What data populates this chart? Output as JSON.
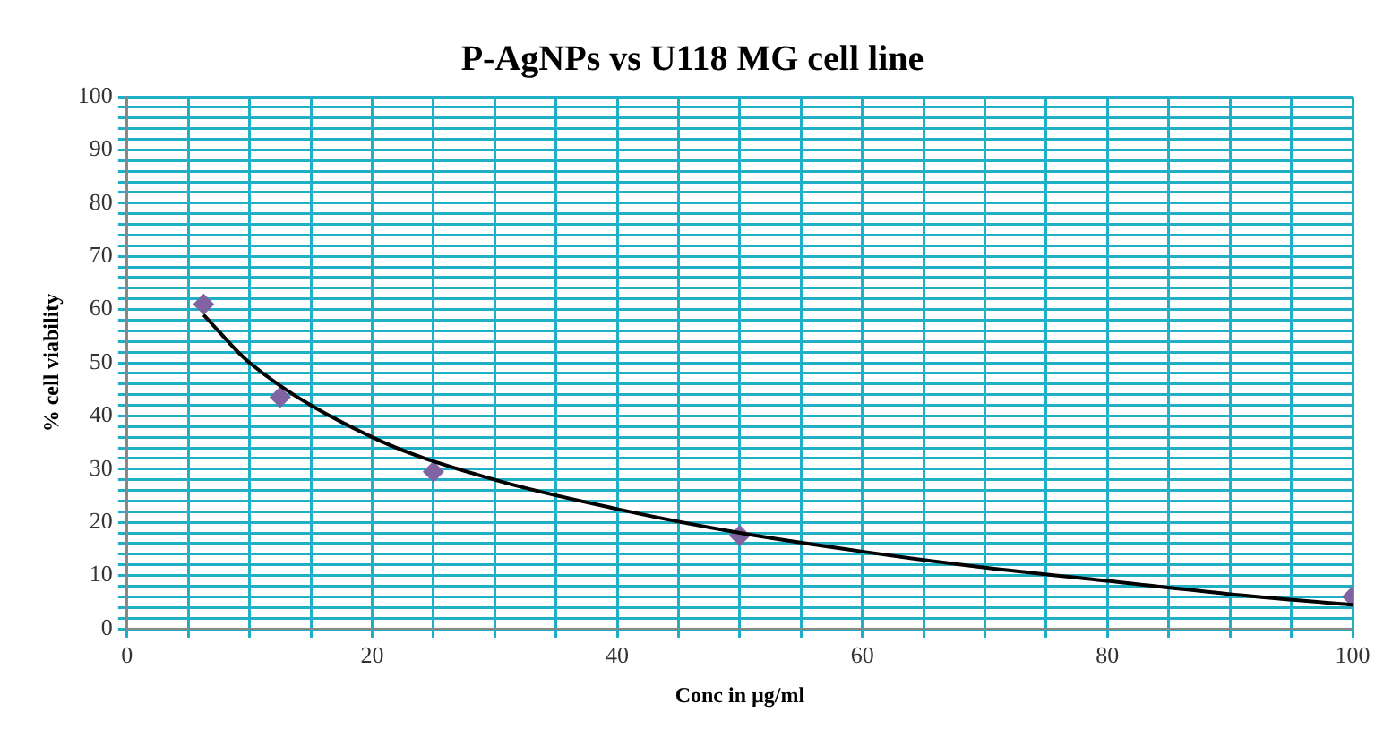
{
  "chart_data": {
    "type": "scatter",
    "title": "P-AgNPs vs U118 MG cell line",
    "xlabel": "Conc in µg/ml",
    "ylabel": "% cell viability",
    "xlim": [
      0,
      100
    ],
    "ylim": [
      0,
      100
    ],
    "xticks": [
      0,
      {
        "value": 5,
        "label": null
      },
      {
        "value": 10,
        "label": null
      },
      {
        "value": 15,
        "label": null
      },
      20,
      {
        "value": 25,
        "label": null
      },
      {
        "value": 30,
        "label": null
      },
      {
        "value": 35,
        "label": null
      },
      40,
      {
        "value": 45,
        "label": null
      },
      {
        "value": 50,
        "label": null
      },
      {
        "value": 55,
        "label": null
      },
      60,
      {
        "value": 65,
        "label": null
      },
      {
        "value": 70,
        "label": null
      },
      {
        "value": 75,
        "label": null
      },
      80,
      {
        "value": 85,
        "label": null
      },
      {
        "value": 90,
        "label": null
      },
      {
        "value": 95,
        "label": null
      },
      100
    ],
    "yticks": [
      0,
      {
        "value": 2,
        "label": null
      },
      {
        "value": 4,
        "label": null
      },
      {
        "value": 6,
        "label": null
      },
      {
        "value": 8,
        "label": null
      },
      10,
      {
        "value": 12,
        "label": null
      },
      {
        "value": 14,
        "label": null
      },
      {
        "value": 16,
        "label": null
      },
      {
        "value": 18,
        "label": null
      },
      20,
      {
        "value": 22,
        "label": null
      },
      {
        "value": 24,
        "label": null
      },
      {
        "value": 26,
        "label": null
      },
      {
        "value": 28,
        "label": null
      },
      30,
      {
        "value": 32,
        "label": null
      },
      {
        "value": 34,
        "label": null
      },
      {
        "value": 36,
        "label": null
      },
      {
        "value": 38,
        "label": null
      },
      40,
      {
        "value": 42,
        "label": null
      },
      {
        "value": 44,
        "label": null
      },
      {
        "value": 46,
        "label": null
      },
      {
        "value": 48,
        "label": null
      },
      50,
      {
        "value": 52,
        "label": null
      },
      {
        "value": 54,
        "label": null
      },
      {
        "value": 56,
        "label": null
      },
      {
        "value": 58,
        "label": null
      },
      60,
      {
        "value": 62,
        "label": null
      },
      {
        "value": 64,
        "label": null
      },
      {
        "value": 66,
        "label": null
      },
      {
        "value": 68,
        "label": null
      },
      70,
      {
        "value": 72,
        "label": null
      },
      {
        "value": 74,
        "label": null
      },
      {
        "value": 76,
        "label": null
      },
      {
        "value": 78,
        "label": null
      },
      80,
      {
        "value": 82,
        "label": null
      },
      {
        "value": 84,
        "label": null
      },
      {
        "value": 86,
        "label": null
      },
      {
        "value": 88,
        "label": null
      },
      90,
      {
        "value": 92,
        "label": null
      },
      {
        "value": 94,
        "label": null
      },
      {
        "value": 96,
        "label": null
      },
      {
        "value": 98,
        "label": null
      },
      100
    ],
    "grid": true,
    "legend": false,
    "series": [
      {
        "type": "line",
        "color": "#000000",
        "marker": "none",
        "x": [
          6.25,
          10,
          20,
          30,
          40,
          50,
          60,
          70,
          80,
          90,
          100
        ],
        "values": [
          59,
          50,
          36,
          28,
          22.5,
          18,
          14.5,
          11.5,
          9,
          6.5,
          4.5
        ]
      },
      {
        "type": "scatter",
        "color": "#8064a2",
        "marker": "diamond",
        "x": [
          6.25,
          12.5,
          25,
          50,
          100
        ],
        "values": [
          61,
          43.5,
          29.5,
          17.5,
          6
        ]
      }
    ]
  }
}
